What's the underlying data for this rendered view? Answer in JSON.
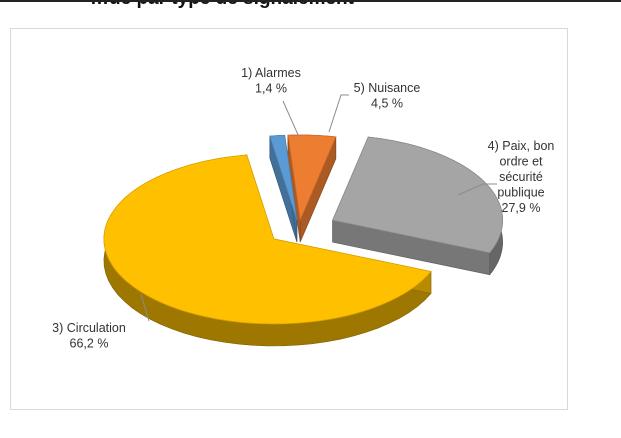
{
  "header": {
    "title": "…ue par type de signalement"
  },
  "chart_data": {
    "type": "pie",
    "style": "3d-exploded",
    "slices": [
      {
        "category_lines": [
          "1) Alarmes"
        ],
        "value_label": "1,4 %",
        "value": 1.4,
        "color": "#5b9bd5"
      },
      {
        "category_lines": [
          "5) Nuisance"
        ],
        "value_label": "4,5 %",
        "value": 4.5,
        "color": "#ed7d31"
      },
      {
        "category_lines": [
          "4) Paix, bon",
          "ordre et",
          "sécurité",
          "publique"
        ],
        "value_label": "27,9 %",
        "value": 27.9,
        "color": "#a5a5a5"
      },
      {
        "category_lines": [
          "3) Circulation"
        ],
        "value_label": "66,2 %",
        "value": 66.2,
        "color": "#ffc000"
      }
    ]
  }
}
